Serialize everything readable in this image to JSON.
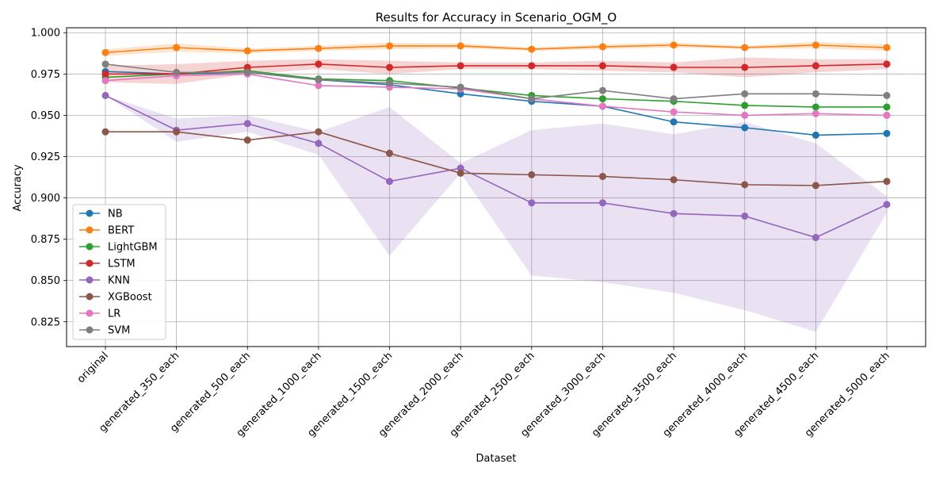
{
  "chart_data": {
    "type": "line",
    "title": "Results for Accuracy in Scenario_OGM_O",
    "xlabel": "Dataset",
    "ylabel": "Accuracy",
    "ylim": [
      0.81,
      1.003
    ],
    "grid": true,
    "legend_position": "lower-left",
    "categories": [
      "original",
      "generated_350_each",
      "generated_500_each",
      "generated_1000_each",
      "generated_1500_each",
      "generated_2000_each",
      "generated_2500_each",
      "generated_3000_each",
      "generated_3500_each",
      "generated_4000_each",
      "generated_4500_each",
      "generated_5000_each"
    ],
    "yticks": [
      "0.825",
      "0.850",
      "0.875",
      "0.900",
      "0.925",
      "0.950",
      "0.975",
      "1.000"
    ],
    "series": [
      {
        "name": "NB",
        "color": "#1f77b4",
        "values": [
          0.9765,
          0.975,
          0.976,
          0.9715,
          0.9685,
          0.963,
          0.9585,
          0.9555,
          0.946,
          0.9425,
          0.938,
          0.939
        ],
        "band": [
          0.0,
          0.0,
          0.0,
          0.0,
          0.0,
          0.0,
          0.0,
          0.0,
          0.0,
          0.0,
          0.0,
          0.0
        ]
      },
      {
        "name": "BERT",
        "color": "#ff7f0e",
        "values": [
          0.988,
          0.991,
          0.989,
          0.9905,
          0.992,
          0.992,
          0.99,
          0.9915,
          0.9925,
          0.991,
          0.9925,
          0.991
        ],
        "band": [
          0.002,
          0.0025,
          0.0015,
          0.0015,
          0.002,
          0.0015,
          0.001,
          0.0015,
          0.0015,
          0.001,
          0.002,
          0.002
        ]
      },
      {
        "name": "LightGBM",
        "color": "#2ca02c",
        "values": [
          0.973,
          0.975,
          0.977,
          0.972,
          0.971,
          0.9665,
          0.962,
          0.96,
          0.9585,
          0.956,
          0.955,
          0.955
        ],
        "band": [
          0.0,
          0.0,
          0.0,
          0.0,
          0.0,
          0.0,
          0.0,
          0.0,
          0.0,
          0.0,
          0.0,
          0.0
        ]
      },
      {
        "name": "LSTM",
        "color": "#d62728",
        "values": [
          0.975,
          0.975,
          0.979,
          0.981,
          0.979,
          0.98,
          0.98,
          0.98,
          0.979,
          0.979,
          0.98,
          0.981
        ],
        "band": [
          0.005,
          0.006,
          0.004,
          0.003,
          0.004,
          0.002,
          0.002,
          0.003,
          0.003,
          0.006,
          0.004,
          0.003
        ]
      },
      {
        "name": "KNN",
        "color": "#9467bd",
        "values": [
          0.962,
          0.941,
          0.945,
          0.933,
          0.91,
          0.918,
          0.897,
          0.897,
          0.8905,
          0.889,
          0.876,
          0.896
        ],
        "band": [
          0.0,
          0.007,
          0.005,
          0.007,
          0.045,
          0.003,
          0.044,
          0.048,
          0.048,
          0.057,
          0.057,
          0.005
        ]
      },
      {
        "name": "XGBoost",
        "color": "#8c564b",
        "values": [
          0.94,
          0.94,
          0.935,
          0.94,
          0.927,
          0.915,
          0.914,
          0.913,
          0.911,
          0.908,
          0.9075,
          0.91
        ],
        "band": [
          0.0,
          0.0,
          0.0,
          0.0,
          0.0,
          0.0,
          0.0,
          0.0,
          0.0,
          0.0,
          0.0,
          0.0
        ]
      },
      {
        "name": "LR",
        "color": "#e377c2",
        "values": [
          0.971,
          0.974,
          0.975,
          0.968,
          0.967,
          0.966,
          0.96,
          0.9555,
          0.952,
          0.95,
          0.951,
          0.95
        ],
        "band": [
          0.0,
          0.0,
          0.0,
          0.0,
          0.0,
          0.0,
          0.0,
          0.0,
          0.0,
          0.0,
          0.0,
          0.0
        ]
      },
      {
        "name": "SVM",
        "color": "#7f7f7f",
        "values": [
          0.981,
          0.976,
          0.976,
          0.9715,
          0.9695,
          0.967,
          0.96,
          0.965,
          0.96,
          0.963,
          0.963,
          0.962
        ],
        "band": [
          0.0,
          0.0,
          0.0,
          0.0,
          0.0,
          0.0,
          0.0,
          0.0,
          0.0,
          0.0,
          0.0,
          0.0
        ]
      }
    ]
  }
}
